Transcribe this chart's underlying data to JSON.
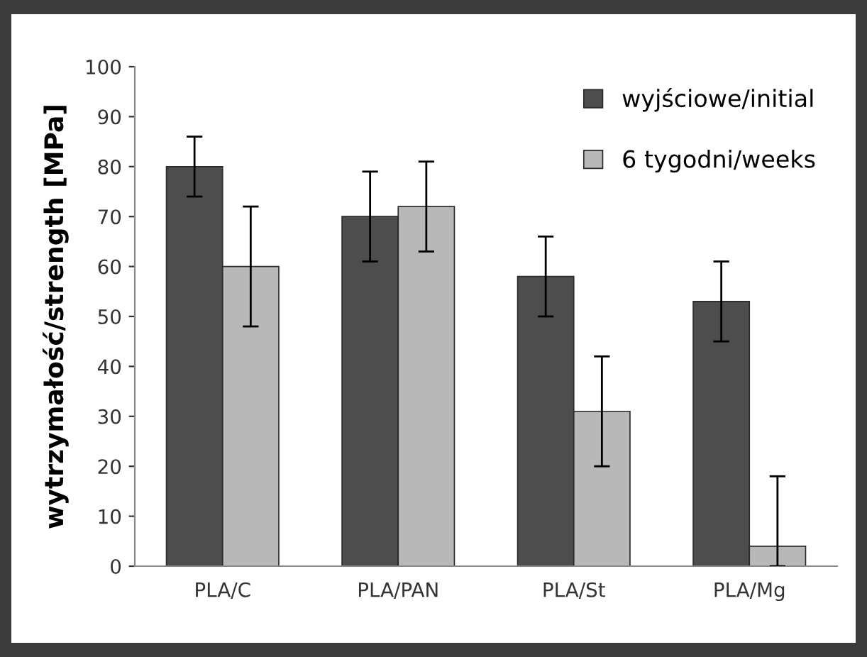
{
  "chart_data": {
    "type": "bar",
    "ylabel": "wytrzymałość/strength [MPa]",
    "categories": [
      "PLA/C",
      "PLA/PAN",
      "PLA/St",
      "PLA/Mg"
    ],
    "series": [
      {
        "name": "wyjściowe/initial",
        "color": "#4d4d4d",
        "values": [
          80,
          70,
          58,
          53
        ],
        "errors": [
          [
            74,
            86
          ],
          [
            61,
            79
          ],
          [
            50,
            66
          ],
          [
            45,
            61
          ]
        ]
      },
      {
        "name": "6 tygodni/weeks",
        "color": "#b8b8b8",
        "values": [
          60,
          72,
          31,
          4
        ],
        "errors": [
          [
            48,
            72
          ],
          [
            63,
            81
          ],
          [
            20,
            42
          ],
          [
            0,
            18
          ]
        ]
      }
    ],
    "ylim": [
      0,
      100
    ],
    "yticks": [
      0,
      10,
      20,
      30,
      40,
      50,
      60,
      70,
      80,
      90,
      100
    ],
    "grid": false,
    "legend": "top right"
  }
}
